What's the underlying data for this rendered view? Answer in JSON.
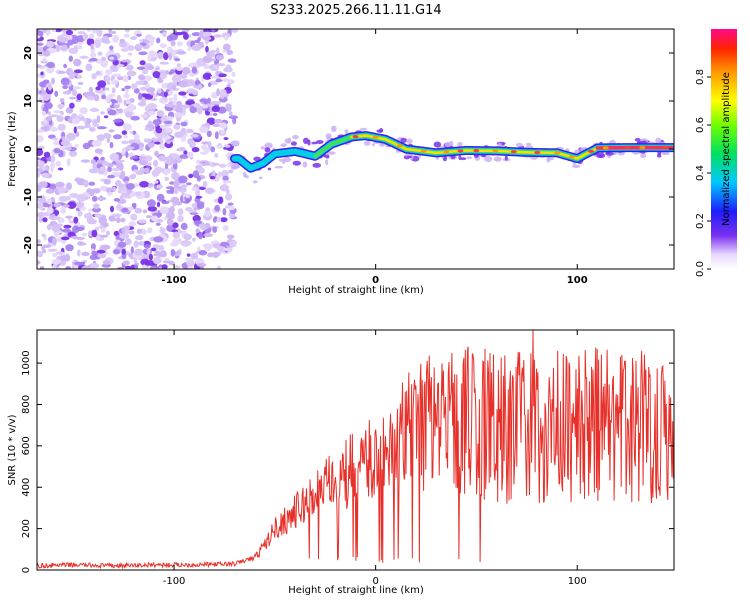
{
  "title": "S233.2025.266.11.11.G14",
  "colors": {
    "snr_line": "#e8302a",
    "speckle": "#7a33e6",
    "frame": "#000000"
  },
  "chart_data": [
    {
      "type": "heatmap",
      "name": "spectrogram",
      "xlabel": "Height of straight line (km)",
      "ylabel": "Frequency (Hz)",
      "xlim": [
        -168,
        148
      ],
      "ylim": [
        -25,
        25
      ],
      "xticks": [
        -100,
        0,
        100
      ],
      "yticks": [
        -20,
        -10,
        0,
        10,
        20
      ],
      "colorbar": {
        "label": "Normalized spectral amplitude",
        "range": [
          0,
          1
        ],
        "ticks": [
          0.0,
          0.2,
          0.4,
          0.6,
          0.8
        ]
      },
      "ridge": {
        "description": "dominant frequency track vs height",
        "points": [
          {
            "x": -68,
            "y": -2
          },
          {
            "x": -62,
            "y": -4
          },
          {
            "x": -56,
            "y": -3
          },
          {
            "x": -50,
            "y": -1
          },
          {
            "x": -40,
            "y": -0.5
          },
          {
            "x": -30,
            "y": -1.5
          },
          {
            "x": -22,
            "y": 1
          },
          {
            "x": -12,
            "y": 2.5
          },
          {
            "x": -5,
            "y": 2.8
          },
          {
            "x": 5,
            "y": 2
          },
          {
            "x": 15,
            "y": 0
          },
          {
            "x": 30,
            "y": -0.8
          },
          {
            "x": 45,
            "y": -0.3
          },
          {
            "x": 60,
            "y": -0.4
          },
          {
            "x": 75,
            "y": -0.7
          },
          {
            "x": 90,
            "y": -0.8
          },
          {
            "x": 100,
            "y": -2
          },
          {
            "x": 110,
            "y": 0.2
          },
          {
            "x": 125,
            "y": 0.3
          },
          {
            "x": 148,
            "y": 0.3
          }
        ]
      }
    },
    {
      "type": "line",
      "name": "snr",
      "xlabel": "Height of straight line (km)",
      "ylabel": "SNR (10 * v/v)",
      "xlim": [
        -168,
        148
      ],
      "ylim": [
        0,
        1160
      ],
      "xticks": [
        -100,
        0,
        100
      ],
      "yticks": [
        0,
        200,
        400,
        600,
        800,
        1000
      ],
      "series": [
        {
          "name": "SNR",
          "x": [
            -168,
            -150,
            -130,
            -110,
            -90,
            -70,
            -60,
            -55,
            -50,
            -45,
            -40,
            -35,
            -30,
            -25,
            -20,
            -15,
            -10,
            -5,
            0,
            5,
            10,
            15,
            20,
            25,
            30,
            35,
            40,
            45,
            50,
            55,
            60,
            65,
            70,
            75,
            80,
            85,
            90,
            95,
            100,
            105,
            110,
            115,
            120,
            125,
            130,
            135,
            140,
            148
          ],
          "values": [
            20,
            25,
            20,
            25,
            25,
            30,
            60,
            120,
            200,
            240,
            280,
            320,
            370,
            400,
            430,
            460,
            500,
            510,
            540,
            590,
            620,
            660,
            690,
            700,
            720,
            700,
            710,
            720,
            720,
            700,
            700,
            710,
            700,
            690,
            690,
            700,
            700,
            690,
            700,
            690,
            710,
            700,
            690,
            700,
            710,
            700,
            700,
            700
          ]
        }
      ],
      "peak_annotation": {
        "x": 78,
        "y": 1160
      }
    }
  ]
}
